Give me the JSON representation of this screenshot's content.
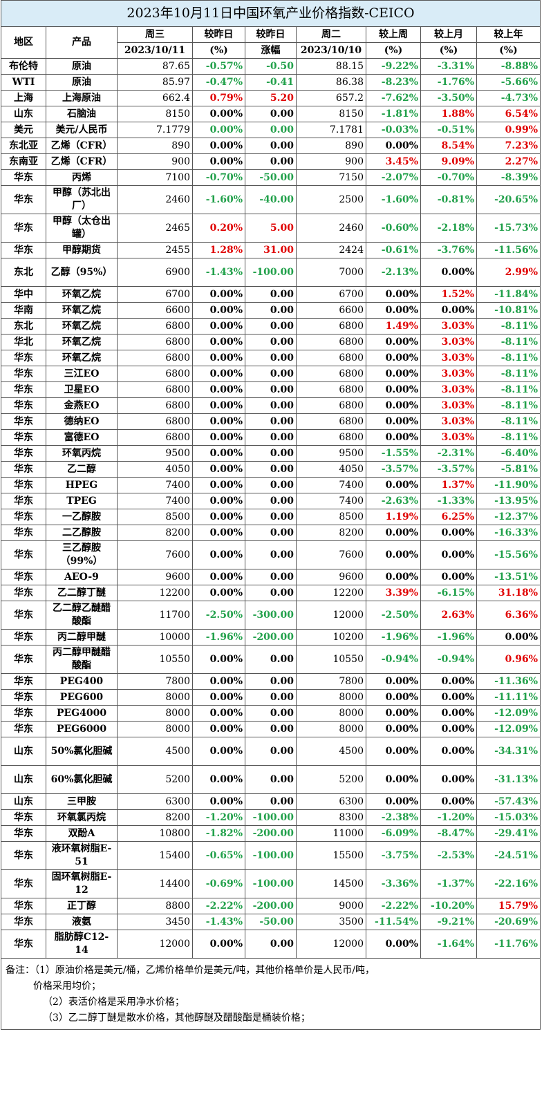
{
  "title": "2023年10月11日中国环氧产业价格指数-CEICO",
  "header": {
    "region": "地区",
    "product": "产品",
    "wed": "周三",
    "wed_date": "2023/10/11",
    "vs_yday_pct": "较昨日",
    "vs_yday_pct_unit": "(%)",
    "vs_yday_amt": "较昨日",
    "vs_yday_amt_unit": "涨幅",
    "tue": "周二",
    "tue_date": "2023/10/10",
    "vs_week": "较上周",
    "vs_week_unit": "(%)",
    "vs_month": "较上月",
    "vs_month_unit": "(%)",
    "vs_year": "较上年",
    "vs_year_unit": "(%)"
  },
  "rows": [
    {
      "region": "布伦特",
      "product": "原油",
      "price": "87.65",
      "dpct": "-0.57%",
      "damt": "-0.50",
      "prev": "88.15",
      "wk": "-9.22%",
      "mo": "-3.31%",
      "yr": "-8.88%",
      "c": [
        "g",
        "g",
        "g",
        "g",
        "g"
      ],
      "tall": false
    },
    {
      "region": "WTI",
      "product": "原油",
      "price": "85.97",
      "dpct": "-0.47%",
      "damt": "-0.41",
      "prev": "86.38",
      "wk": "-8.23%",
      "mo": "-1.76%",
      "yr": "-5.66%",
      "c": [
        "g",
        "g",
        "g",
        "g",
        "g"
      ],
      "tall": false
    },
    {
      "region": "上海",
      "product": "上海原油",
      "price": "662.4",
      "dpct": "0.79%",
      "damt": "5.20",
      "prev": "657.2",
      "wk": "-7.62%",
      "mo": "-3.50%",
      "yr": "-4.73%",
      "c": [
        "r",
        "r",
        "g",
        "g",
        "g"
      ],
      "tall": false
    },
    {
      "region": "山东",
      "product": "石脑油",
      "price": "8150",
      "dpct": "0.00%",
      "damt": "0.00",
      "prev": "8150",
      "wk": "-1.81%",
      "mo": "1.88%",
      "yr": "6.54%",
      "c": [
        "k",
        "k",
        "g",
        "r",
        "r"
      ],
      "tall": false
    },
    {
      "region": "美元",
      "product": "美元/人民币",
      "price": "7.1779",
      "dpct": "0.00%",
      "damt": "0.00",
      "prev": "7.1781",
      "wk": "-0.03%",
      "mo": "-0.51%",
      "yr": "0.99%",
      "c": [
        "g",
        "g",
        "g",
        "g",
        "r"
      ],
      "tall": false
    },
    {
      "region": "东北亚",
      "product": "乙烯（CFR）",
      "price": "890",
      "dpct": "0.00%",
      "damt": "0.00",
      "prev": "890",
      "wk": "0.00%",
      "mo": "8.54%",
      "yr": "7.23%",
      "c": [
        "k",
        "k",
        "k",
        "r",
        "r"
      ],
      "tall": false
    },
    {
      "region": "东南亚",
      "product": "乙烯（CFR）",
      "price": "900",
      "dpct": "0.00%",
      "damt": "0.00",
      "prev": "900",
      "wk": "3.45%",
      "mo": "9.09%",
      "yr": "2.27%",
      "c": [
        "k",
        "k",
        "r",
        "r",
        "r"
      ],
      "tall": false
    },
    {
      "region": "华东",
      "product": "丙烯",
      "price": "7100",
      "dpct": "-0.70%",
      "damt": "-50.00",
      "prev": "7150",
      "wk": "-2.07%",
      "mo": "-0.70%",
      "yr": "-8.39%",
      "c": [
        "g",
        "g",
        "g",
        "g",
        "g"
      ],
      "tall": false
    },
    {
      "region": "华东",
      "product": "甲醇（苏北出厂）",
      "price": "2460",
      "dpct": "-1.60%",
      "damt": "-40.00",
      "prev": "2500",
      "wk": "-1.60%",
      "mo": "-0.81%",
      "yr": "-20.65%",
      "c": [
        "g",
        "g",
        "g",
        "g",
        "g"
      ],
      "tall": true
    },
    {
      "region": "华东",
      "product": "甲醇（太仓出罐）",
      "price": "2465",
      "dpct": "0.20%",
      "damt": "5.00",
      "prev": "2460",
      "wk": "-0.60%",
      "mo": "-2.18%",
      "yr": "-15.73%",
      "c": [
        "r",
        "r",
        "g",
        "g",
        "g"
      ],
      "tall": true
    },
    {
      "region": "华东",
      "product": "甲醇期货",
      "price": "2455",
      "dpct": "1.28%",
      "damt": "31.00",
      "prev": "2424",
      "wk": "-0.61%",
      "mo": "-3.76%",
      "yr": "-11.56%",
      "c": [
        "r",
        "r",
        "g",
        "g",
        "g"
      ],
      "tall": false
    },
    {
      "region": "东北",
      "product": "乙醇（95%）",
      "price": "6900",
      "dpct": "-1.43%",
      "damt": "-100.00",
      "prev": "7000",
      "wk": "-2.13%",
      "mo": "0.00%",
      "yr": "2.99%",
      "c": [
        "g",
        "g",
        "g",
        "k",
        "r"
      ],
      "tall": true
    },
    {
      "region": "华中",
      "product": "环氧乙烷",
      "price": "6700",
      "dpct": "0.00%",
      "damt": "0.00",
      "prev": "6700",
      "wk": "0.00%",
      "mo": "1.52%",
      "yr": "-11.84%",
      "c": [
        "k",
        "k",
        "k",
        "r",
        "g"
      ],
      "tall": false
    },
    {
      "region": "华南",
      "product": "环氧乙烷",
      "price": "6600",
      "dpct": "0.00%",
      "damt": "0.00",
      "prev": "6600",
      "wk": "0.00%",
      "mo": "0.00%",
      "yr": "-10.81%",
      "c": [
        "k",
        "k",
        "k",
        "k",
        "g"
      ],
      "tall": false
    },
    {
      "region": "东北",
      "product": "环氧乙烷",
      "price": "6800",
      "dpct": "0.00%",
      "damt": "0.00",
      "prev": "6800",
      "wk": "1.49%",
      "mo": "3.03%",
      "yr": "-8.11%",
      "c": [
        "k",
        "k",
        "r",
        "r",
        "g"
      ],
      "tall": false
    },
    {
      "region": "华北",
      "product": "环氧乙烷",
      "price": "6800",
      "dpct": "0.00%",
      "damt": "0.00",
      "prev": "6800",
      "wk": "0.00%",
      "mo": "3.03%",
      "yr": "-8.11%",
      "c": [
        "k",
        "k",
        "k",
        "r",
        "g"
      ],
      "tall": false
    },
    {
      "region": "华东",
      "product": "环氧乙烷",
      "price": "6800",
      "dpct": "0.00%",
      "damt": "0.00",
      "prev": "6800",
      "wk": "0.00%",
      "mo": "3.03%",
      "yr": "-8.11%",
      "c": [
        "k",
        "k",
        "k",
        "r",
        "g"
      ],
      "tall": false
    },
    {
      "region": "华东",
      "product": "三江EO",
      "price": "6800",
      "dpct": "0.00%",
      "damt": "0.00",
      "prev": "6800",
      "wk": "0.00%",
      "mo": "3.03%",
      "yr": "-8.11%",
      "c": [
        "k",
        "k",
        "k",
        "r",
        "g"
      ],
      "tall": false
    },
    {
      "region": "华东",
      "product": "卫星EO",
      "price": "6800",
      "dpct": "0.00%",
      "damt": "0.00",
      "prev": "6800",
      "wk": "0.00%",
      "mo": "3.03%",
      "yr": "-8.11%",
      "c": [
        "k",
        "k",
        "k",
        "r",
        "g"
      ],
      "tall": false
    },
    {
      "region": "华东",
      "product": "金燕EO",
      "price": "6800",
      "dpct": "0.00%",
      "damt": "0.00",
      "prev": "6800",
      "wk": "0.00%",
      "mo": "3.03%",
      "yr": "-8.11%",
      "c": [
        "k",
        "k",
        "k",
        "r",
        "g"
      ],
      "tall": false
    },
    {
      "region": "华东",
      "product": "德纳EO",
      "price": "6800",
      "dpct": "0.00%",
      "damt": "0.00",
      "prev": "6800",
      "wk": "0.00%",
      "mo": "3.03%",
      "yr": "-8.11%",
      "c": [
        "k",
        "k",
        "k",
        "r",
        "g"
      ],
      "tall": false
    },
    {
      "region": "华东",
      "product": "富德EO",
      "price": "6800",
      "dpct": "0.00%",
      "damt": "0.00",
      "prev": "6800",
      "wk": "0.00%",
      "mo": "3.03%",
      "yr": "-8.11%",
      "c": [
        "k",
        "k",
        "k",
        "r",
        "g"
      ],
      "tall": false
    },
    {
      "region": "华东",
      "product": "环氧丙烷",
      "price": "9500",
      "dpct": "0.00%",
      "damt": "0.00",
      "prev": "9500",
      "wk": "-1.55%",
      "mo": "-2.31%",
      "yr": "-6.40%",
      "c": [
        "k",
        "k",
        "g",
        "g",
        "g"
      ],
      "tall": false
    },
    {
      "region": "华东",
      "product": "乙二醇",
      "price": "4050",
      "dpct": "0.00%",
      "damt": "0.00",
      "prev": "4050",
      "wk": "-3.57%",
      "mo": "-3.57%",
      "yr": "-5.81%",
      "c": [
        "k",
        "k",
        "g",
        "g",
        "g"
      ],
      "tall": false
    },
    {
      "region": "华东",
      "product": "HPEG",
      "price": "7400",
      "dpct": "0.00%",
      "damt": "0.00",
      "prev": "7400",
      "wk": "0.00%",
      "mo": "1.37%",
      "yr": "-11.90%",
      "c": [
        "k",
        "k",
        "k",
        "r",
        "g"
      ],
      "tall": false
    },
    {
      "region": "华东",
      "product": "TPEG",
      "price": "7400",
      "dpct": "0.00%",
      "damt": "0.00",
      "prev": "7400",
      "wk": "-2.63%",
      "mo": "-1.33%",
      "yr": "-13.95%",
      "c": [
        "k",
        "k",
        "g",
        "g",
        "g"
      ],
      "tall": false
    },
    {
      "region": "华东",
      "product": "一乙醇胺",
      "price": "8500",
      "dpct": "0.00%",
      "damt": "0.00",
      "prev": "8500",
      "wk": "1.19%",
      "mo": "6.25%",
      "yr": "-12.37%",
      "c": [
        "k",
        "k",
        "r",
        "r",
        "g"
      ],
      "tall": false
    },
    {
      "region": "华东",
      "product": "二乙醇胺",
      "price": "8200",
      "dpct": "0.00%",
      "damt": "0.00",
      "prev": "8200",
      "wk": "0.00%",
      "mo": "0.00%",
      "yr": "-16.33%",
      "c": [
        "k",
        "k",
        "k",
        "k",
        "g"
      ],
      "tall": false
    },
    {
      "region": "华东",
      "product": "三乙醇胺（99%）",
      "price": "7600",
      "dpct": "0.00%",
      "damt": "0.00",
      "prev": "7600",
      "wk": "0.00%",
      "mo": "0.00%",
      "yr": "-15.56%",
      "c": [
        "k",
        "k",
        "k",
        "k",
        "g"
      ],
      "tall": true
    },
    {
      "region": "华东",
      "product": "AEO-9",
      "price": "9600",
      "dpct": "0.00%",
      "damt": "0.00",
      "prev": "9600",
      "wk": "0.00%",
      "mo": "0.00%",
      "yr": "-13.51%",
      "c": [
        "k",
        "k",
        "k",
        "k",
        "g"
      ],
      "tall": false
    },
    {
      "region": "华东",
      "product": "乙二醇丁醚",
      "price": "12200",
      "dpct": "0.00%",
      "damt": "0.00",
      "prev": "12200",
      "wk": "3.39%",
      "mo": "-6.15%",
      "yr": "31.18%",
      "c": [
        "k",
        "k",
        "r",
        "g",
        "r"
      ],
      "tall": false
    },
    {
      "region": "华东",
      "product": "乙二醇乙醚醋酸酯",
      "price": "11700",
      "dpct": "-2.50%",
      "damt": "-300.00",
      "prev": "12000",
      "wk": "-2.50%",
      "mo": "2.63%",
      "yr": "6.36%",
      "c": [
        "g",
        "g",
        "g",
        "r",
        "r"
      ],
      "tall": true
    },
    {
      "region": "华东",
      "product": "丙二醇甲醚",
      "price": "10000",
      "dpct": "-1.96%",
      "damt": "-200.00",
      "prev": "10200",
      "wk": "-1.96%",
      "mo": "-1.96%",
      "yr": "0.00%",
      "c": [
        "g",
        "g",
        "g",
        "g",
        "k"
      ],
      "tall": false
    },
    {
      "region": "华东",
      "product": "丙二醇甲醚醋酸酯",
      "price": "10550",
      "dpct": "0.00%",
      "damt": "0.00",
      "prev": "10550",
      "wk": "-0.94%",
      "mo": "-0.94%",
      "yr": "0.96%",
      "c": [
        "k",
        "k",
        "g",
        "g",
        "r"
      ],
      "tall": true
    },
    {
      "region": "华东",
      "product": "PEG400",
      "price": "7800",
      "dpct": "0.00%",
      "damt": "0.00",
      "prev": "7800",
      "wk": "0.00%",
      "mo": "0.00%",
      "yr": "-11.36%",
      "c": [
        "k",
        "k",
        "k",
        "k",
        "g"
      ],
      "tall": false
    },
    {
      "region": "华东",
      "product": "PEG600",
      "price": "8000",
      "dpct": "0.00%",
      "damt": "0.00",
      "prev": "8000",
      "wk": "0.00%",
      "mo": "0.00%",
      "yr": "-11.11%",
      "c": [
        "k",
        "k",
        "k",
        "k",
        "g"
      ],
      "tall": false
    },
    {
      "region": "华东",
      "product": "PEG4000",
      "price": "8000",
      "dpct": "0.00%",
      "damt": "0.00",
      "prev": "8000",
      "wk": "0.00%",
      "mo": "0.00%",
      "yr": "-12.09%",
      "c": [
        "k",
        "k",
        "k",
        "k",
        "g"
      ],
      "tall": false
    },
    {
      "region": "华东",
      "product": "PEG6000",
      "price": "8000",
      "dpct": "0.00%",
      "damt": "0.00",
      "prev": "8000",
      "wk": "0.00%",
      "mo": "0.00%",
      "yr": "-12.09%",
      "c": [
        "k",
        "k",
        "k",
        "k",
        "g"
      ],
      "tall": false
    },
    {
      "region": "山东",
      "product": "50%氯化胆碱",
      "price": "4500",
      "dpct": "0.00%",
      "damt": "0.00",
      "prev": "4500",
      "wk": "0.00%",
      "mo": "0.00%",
      "yr": "-34.31%",
      "c": [
        "k",
        "k",
        "k",
        "k",
        "g"
      ],
      "tall": true
    },
    {
      "region": "山东",
      "product": "60%氯化胆碱",
      "price": "5200",
      "dpct": "0.00%",
      "damt": "0.00",
      "prev": "5200",
      "wk": "0.00%",
      "mo": "0.00%",
      "yr": "-31.13%",
      "c": [
        "k",
        "k",
        "k",
        "k",
        "g"
      ],
      "tall": true
    },
    {
      "region": "山东",
      "product": "三甲胺",
      "price": "6300",
      "dpct": "0.00%",
      "damt": "0.00",
      "prev": "6300",
      "wk": "0.00%",
      "mo": "0.00%",
      "yr": "-57.43%",
      "c": [
        "k",
        "k",
        "k",
        "k",
        "g"
      ],
      "tall": false
    },
    {
      "region": "华东",
      "product": "环氧氯丙烷",
      "price": "8200",
      "dpct": "-1.20%",
      "damt": "-100.00",
      "prev": "8300",
      "wk": "-2.38%",
      "mo": "-1.20%",
      "yr": "-15.03%",
      "c": [
        "g",
        "g",
        "g",
        "g",
        "g"
      ],
      "tall": false
    },
    {
      "region": "华东",
      "product": "双酚A",
      "price": "10800",
      "dpct": "-1.82%",
      "damt": "-200.00",
      "prev": "11000",
      "wk": "-6.09%",
      "mo": "-8.47%",
      "yr": "-29.41%",
      "c": [
        "g",
        "g",
        "g",
        "g",
        "g"
      ],
      "tall": false
    },
    {
      "region": "华东",
      "product": "液环氧树脂E-51",
      "price": "15400",
      "dpct": "-0.65%",
      "damt": "-100.00",
      "prev": "15500",
      "wk": "-3.75%",
      "mo": "-2.53%",
      "yr": "-24.51%",
      "c": [
        "g",
        "g",
        "g",
        "g",
        "g"
      ],
      "tall": true
    },
    {
      "region": "华东",
      "product": "固环氧树脂E-12",
      "price": "14400",
      "dpct": "-0.69%",
      "damt": "-100.00",
      "prev": "14500",
      "wk": "-3.36%",
      "mo": "-1.37%",
      "yr": "-22.16%",
      "c": [
        "g",
        "g",
        "g",
        "g",
        "g"
      ],
      "tall": true
    },
    {
      "region": "华东",
      "product": "正丁醇",
      "price": "8800",
      "dpct": "-2.22%",
      "damt": "-200.00",
      "prev": "9000",
      "wk": "-2.22%",
      "mo": "-10.20%",
      "yr": "15.79%",
      "c": [
        "g",
        "g",
        "g",
        "g",
        "r"
      ],
      "tall": false
    },
    {
      "region": "华东",
      "product": "液氨",
      "price": "3450",
      "dpct": "-1.43%",
      "damt": "-50.00",
      "prev": "3500",
      "wk": "-11.54%",
      "mo": "-9.21%",
      "yr": "-20.69%",
      "c": [
        "g",
        "g",
        "g",
        "g",
        "g"
      ],
      "tall": false
    },
    {
      "region": "华东",
      "product": "脂肪醇C12-14",
      "price": "12000",
      "dpct": "0.00%",
      "damt": "0.00",
      "prev": "12000",
      "wk": "0.00%",
      "mo": "-1.64%",
      "yr": "-11.76%",
      "c": [
        "k",
        "k",
        "k",
        "g",
        "g"
      ],
      "tall": true
    }
  ],
  "notes": {
    "line1": "备注：（1）原油价格是美元/桶，乙烯价格单价是美元/吨，其他价格单价是人民币/吨，",
    "line1b": "价格采用均价；",
    "line2": "（2）表活价格是采用净水价格；",
    "line3": "（3）乙二醇丁醚是散水价格，其他醇醚及醋酸酯是桶装价格；"
  },
  "colors": {
    "up": "#e00000",
    "down": "#21a04a",
    "flat": "#000000",
    "title_bg": "#d9ecf7"
  }
}
